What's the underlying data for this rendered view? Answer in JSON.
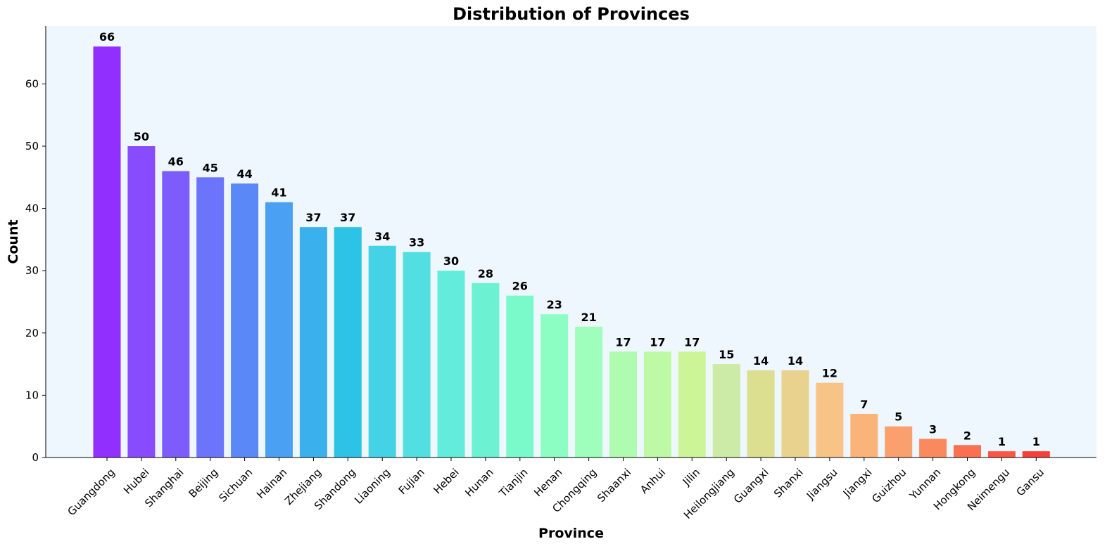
{
  "chart_data": {
    "type": "bar",
    "title": "Distribution of Provinces",
    "xlabel": "Province",
    "ylabel": "Count",
    "ylim": [
      0,
      69.3
    ],
    "yticks": [
      0,
      10,
      20,
      30,
      40,
      50,
      60
    ],
    "grid": false,
    "categories": [
      "Guangdong",
      "Hubei",
      "Shanghai",
      "Beijing",
      "Sichuan",
      "Hainan",
      "Zhejiang",
      "Shandong",
      "Liaoning",
      "Fujian",
      "Hebei",
      "Hunan",
      "Tianjin",
      "Henan",
      "Chongqing",
      "Shaanxi",
      "Anhui",
      "Jilin",
      "Heilongjiang",
      "Guangxi",
      "Shanxi",
      "Jiangsu",
      "Jiangxi",
      "Guizhou",
      "Yunnan",
      "Hongkong",
      "Neimengu",
      "Gansu"
    ],
    "values": [
      66,
      50,
      46,
      45,
      44,
      41,
      37,
      37,
      34,
      33,
      30,
      28,
      26,
      23,
      21,
      17,
      17,
      17,
      15,
      14,
      14,
      12,
      7,
      5,
      3,
      2,
      1,
      1
    ],
    "colors": [
      "#912ffe",
      "#884bfe",
      "#7d5cfd",
      "#6c74fb",
      "#5b88f7",
      "#4aa0f2",
      "#3ab0ec",
      "#2cc3e7",
      "#44d3e6",
      "#52dfe2",
      "#63ebdb",
      "#6cf1d2",
      "#7af9cb",
      "#8cfdc3",
      "#9ffebc",
      "#affbb0",
      "#befaa5",
      "#ccf598",
      "#cceba6",
      "#dbdf8f",
      "#e8d28d",
      "#f8c386",
      "#fab379",
      "#faa06e",
      "#fa8a5e",
      "#fb7053",
      "#fb5643",
      "#f83e36"
    ],
    "plot_background": "#eef6fe"
  }
}
